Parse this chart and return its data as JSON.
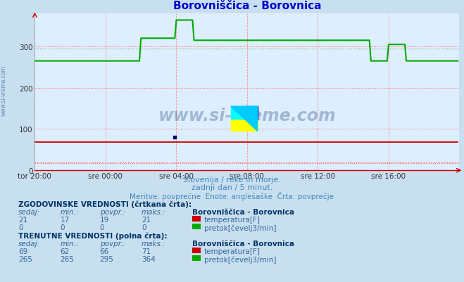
{
  "title": "Borovniščica - Borovnica",
  "title_color": "#0000cc",
  "fig_bg_color": "#c8dff0",
  "plot_bg_color": "#ddeeff",
  "grid_color": "#ff8888",
  "xlim": [
    0,
    288
  ],
  "ylim": [
    0,
    380
  ],
  "yticks": [
    0,
    100,
    200,
    300
  ],
  "xtick_labels": [
    "tor 20:00",
    "sre 00:00",
    "sre 04:00",
    "sre 08:00",
    "sre 12:00",
    "sre 16:00"
  ],
  "xtick_positions": [
    0,
    48,
    96,
    144,
    192,
    240
  ],
  "temp_solid_value": 69,
  "temp_dashed_value": 19,
  "temp_min_dashed": 17,
  "flow_solid_segments": [
    {
      "x_start": 0,
      "x_end": 72,
      "value": 265
    },
    {
      "x_start": 72,
      "x_end": 96,
      "value": 320
    },
    {
      "x_start": 96,
      "x_end": 108,
      "value": 364
    },
    {
      "x_start": 108,
      "x_end": 228,
      "value": 315
    },
    {
      "x_start": 228,
      "x_end": 240,
      "value": 265
    },
    {
      "x_start": 240,
      "x_end": 252,
      "value": 305
    },
    {
      "x_start": 252,
      "x_end": 288,
      "value": 265
    }
  ],
  "flow_dashed_value": 295,
  "temp_color": "#cc0000",
  "flow_color": "#00aa00",
  "dashed_temp_color": "#ff6666",
  "dashed_flow_color": "#88cc88",
  "subtitle1": "Slovenija / reke in morje.",
  "subtitle2": "zadnji dan / 5 minut.",
  "subtitle3": "Meritve: povprečne  Enote: anglešaške  Črta: povprečje",
  "subtitle_color": "#4488bb",
  "watermark_text": "www.si-vreme.com",
  "side_text": "www.si-vreme.com",
  "table_text_color": "#336699",
  "bold_color": "#003366",
  "table_header1": "ZGODOVINSKE VREDNOSTI (črtkana črta):",
  "table_header2": "TRENUTNE VREDNOSTI (polna črta):",
  "hist_sedaj1": "21",
  "hist_min1": "17",
  "hist_povpr1": "19",
  "hist_maks1": "21",
  "hist_sedaj2": "0",
  "hist_min2": "0",
  "hist_povpr2": "0",
  "hist_maks2": "0",
  "curr_sedaj1": "69",
  "curr_min1": "62",
  "curr_povpr1": "66",
  "curr_maks1": "71",
  "curr_sedaj2": "265",
  "curr_min2": "265",
  "curr_povpr2": "295",
  "curr_maks2": "364",
  "label_temp": "temperatura[F]",
  "label_flow": "pretok[čevelj3/min]",
  "station_name": "Borovniščica - Borovnica",
  "col_headers": [
    "sedaj:",
    "min.:",
    "povpr.:",
    "maks.:"
  ]
}
